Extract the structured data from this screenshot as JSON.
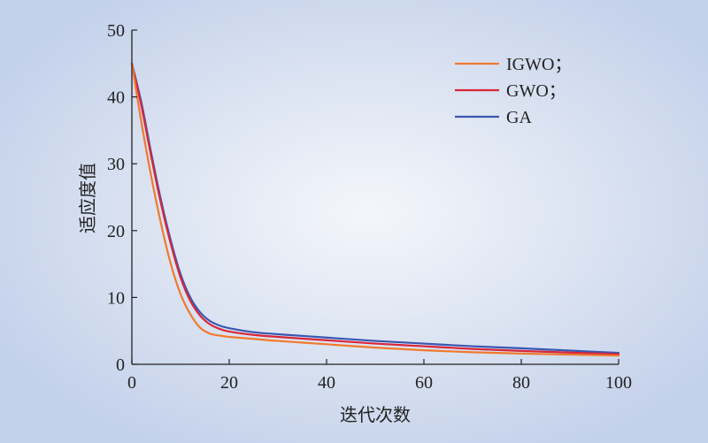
{
  "chart_data": {
    "type": "line",
    "title": "",
    "xlabel": "迭代次数",
    "ylabel": "适应度值",
    "xlim": [
      0,
      100
    ],
    "ylim": [
      0,
      50
    ],
    "xticks": [
      0,
      20,
      40,
      60,
      80,
      100
    ],
    "yticks": [
      0,
      10,
      20,
      30,
      40,
      50
    ],
    "grid": false,
    "legend_position": "top-right",
    "series": [
      {
        "name": "IGWO；",
        "color": "#f07a2e",
        "x": [
          0,
          2,
          4,
          6,
          8,
          10,
          12,
          14,
          16,
          18,
          20,
          25,
          30,
          40,
          50,
          60,
          70,
          80,
          90,
          100
        ],
        "y": [
          45,
          36,
          28,
          21,
          15,
          10.5,
          7.5,
          5.5,
          4.6,
          4.3,
          4.1,
          3.8,
          3.5,
          3.0,
          2.5,
          2.1,
          1.8,
          1.6,
          1.45,
          1.3
        ]
      },
      {
        "name": "GWO；",
        "color": "#d9263a",
        "x": [
          0,
          2,
          4,
          6,
          8,
          10,
          12,
          14,
          16,
          18,
          20,
          25,
          30,
          40,
          50,
          60,
          70,
          80,
          90,
          100
        ],
        "y": [
          45,
          38.5,
          31,
          24,
          18,
          13,
          9.5,
          7.3,
          6.0,
          5.3,
          4.9,
          4.4,
          4.1,
          3.6,
          3.1,
          2.7,
          2.3,
          2.0,
          1.75,
          1.5
        ]
      },
      {
        "name": "GA",
        "color": "#3a57b0",
        "x": [
          0,
          2,
          4,
          6,
          8,
          10,
          12,
          14,
          16,
          18,
          20,
          25,
          30,
          40,
          50,
          60,
          70,
          80,
          90,
          100
        ],
        "y": [
          45,
          39,
          31.5,
          24.5,
          18.5,
          13.5,
          10,
          7.8,
          6.5,
          5.8,
          5.4,
          4.8,
          4.5,
          4.0,
          3.5,
          3.1,
          2.7,
          2.4,
          2.05,
          1.7
        ]
      }
    ]
  }
}
